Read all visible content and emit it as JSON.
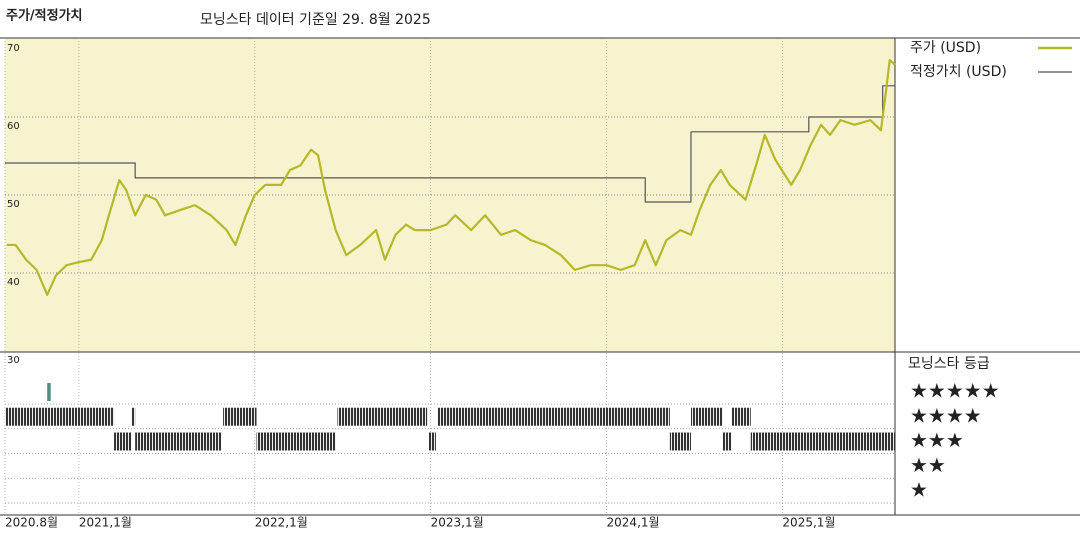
{
  "chart_data": {
    "type": "line",
    "title": "주가/적정가치",
    "subtitle": "모닝스타 데이터 기준일 29. 8월 2025",
    "xlim": [
      2020.58,
      2025.64
    ],
    "xticks": [
      {
        "value": 2020.58,
        "label": "2020.8월"
      },
      {
        "value": 2021,
        "label": "2021,1월"
      },
      {
        "value": 2022,
        "label": "2022,1월"
      },
      {
        "value": 2023,
        "label": "2023,1월"
      },
      {
        "value": 2024,
        "label": "2024,1월"
      },
      {
        "value": 2025,
        "label": "2025,1월"
      }
    ],
    "ylim": [
      30,
      70
    ],
    "yticks": [
      30,
      40,
      50,
      60,
      70
    ],
    "grid": true,
    "series": [
      {
        "name": "주가 (USD)",
        "color": "#b5b829",
        "x": [
          2020.59,
          2020.64,
          2020.7,
          2020.76,
          2020.82,
          2020.87,
          2020.93,
          2021.0,
          2021.07,
          2021.13,
          2021.18,
          2021.23,
          2021.27,
          2021.32,
          2021.38,
          2021.44,
          2021.49,
          2021.58,
          2021.66,
          2021.75,
          2021.84,
          2021.89,
          2021.95,
          2022.0,
          2022.06,
          2022.15,
          2022.2,
          2022.26,
          2022.32,
          2022.36,
          2022.4,
          2022.46,
          2022.52,
          2022.6,
          2022.69,
          2022.74,
          2022.8,
          2022.86,
          2022.91,
          2023.0,
          2023.09,
          2023.14,
          2023.23,
          2023.31,
          2023.4,
          2023.48,
          2023.57,
          2023.65,
          2023.74,
          2023.82,
          2023.91,
          2024.0,
          2024.08,
          2024.16,
          2024.22,
          2024.28,
          2024.34,
          2024.42,
          2024.48,
          2024.53,
          2024.59,
          2024.65,
          2024.7,
          2024.79,
          2024.85,
          2024.9,
          2024.96,
          2025.05,
          2025.1,
          2025.16,
          2025.22,
          2025.27,
          2025.33,
          2025.41,
          2025.5,
          2025.56,
          2025.59,
          2025.61,
          2025.64
        ],
        "values": [
          43.6,
          43.6,
          41.7,
          40.4,
          37.2,
          39.7,
          41.0,
          41.4,
          41.7,
          44.2,
          48.1,
          51.9,
          50.6,
          47.4,
          50.0,
          49.4,
          47.4,
          48.1,
          48.7,
          47.4,
          45.5,
          43.6,
          47.4,
          50.0,
          51.3,
          51.3,
          53.2,
          53.8,
          55.8,
          55.1,
          50.6,
          45.5,
          42.3,
          43.6,
          45.5,
          41.7,
          44.9,
          46.2,
          45.5,
          45.5,
          46.2,
          47.4,
          45.5,
          47.4,
          44.9,
          45.5,
          44.2,
          43.6,
          42.3,
          40.4,
          41.0,
          41.0,
          40.4,
          41.0,
          44.2,
          41.0,
          44.2,
          45.5,
          44.9,
          48.1,
          51.3,
          53.2,
          51.3,
          49.4,
          53.8,
          57.7,
          54.5,
          51.3,
          53.2,
          56.4,
          59.0,
          57.7,
          59.6,
          59.0,
          59.6,
          58.3,
          63.5,
          67.3,
          66.7
        ]
      },
      {
        "name": "적정가치 (USD)",
        "color": "#555555",
        "x": [
          2020.58,
          2021.32,
          2021.32,
          2024.22,
          2024.22,
          2024.48,
          2024.48,
          2025.15,
          2025.15,
          2025.57,
          2025.57,
          2025.64
        ],
        "values": [
          54.1,
          54.1,
          52.2,
          52.2,
          49.1,
          49.1,
          58.1,
          58.1,
          60.0,
          60.0,
          64.0,
          64.0
        ]
      }
    ],
    "rating_title": "모닝스타 등급",
    "rating_labels": [
      "★",
      "★★",
      "★★★",
      "★★★★",
      "★★★★★"
    ],
    "rating_periods": {
      "start": [
        2020.58,
        2020.82,
        2021.2,
        2021.3,
        2021.32,
        2021.82,
        2022.01,
        2022.47,
        2022.99,
        2023.04,
        2024.36,
        2024.48,
        2024.66,
        2024.71,
        2024.82
      ],
      "end": [
        2021.2,
        2020.84,
        2021.3,
        2021.32,
        2021.81,
        2022.01,
        2022.46,
        2022.98,
        2023.03,
        2024.36,
        2024.48,
        2024.66,
        2024.71,
        2024.82,
        2025.64
      ],
      "rating": [
        4,
        5,
        3,
        4,
        3,
        4,
        3,
        4,
        3,
        4,
        3,
        4,
        3,
        4,
        3
      ]
    }
  }
}
